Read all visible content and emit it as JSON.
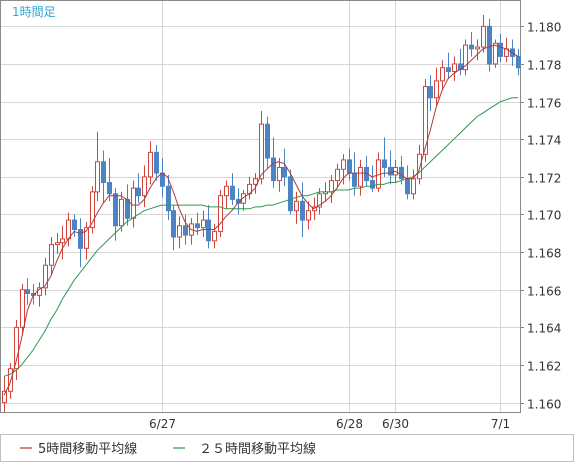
{
  "chart_data": {
    "type": "candlestick",
    "title": "1時間足",
    "ylim": [
      1.1595,
      1.1814
    ],
    "y_ticks": [
      "1.180",
      "1.178",
      "1.176",
      "1.174",
      "1.172",
      "1.170",
      "1.168",
      "1.166",
      "1.164",
      "1.162",
      "1.160"
    ],
    "x_tick_labels": [
      "6/27",
      "6/28",
      "6/30",
      "7/1"
    ],
    "grid": true,
    "legend_position": "bottom",
    "colors": {
      "up": "#d2453c",
      "down": "#4a84c4",
      "ma5": "#b03a3a",
      "ma25": "#2c9a52",
      "title": "#2fa7d6",
      "grid": "#d6d6d6",
      "frame": "#888888",
      "axis_text": "#333333"
    },
    "candles": [
      [
        1.16,
        1.1614,
        1.1595,
        1.1606
      ],
      [
        1.1606,
        1.1621,
        1.1602,
        1.1618
      ],
      [
        1.1618,
        1.1644,
        1.1612,
        1.164
      ],
      [
        1.164,
        1.1663,
        1.1636,
        1.166
      ],
      [
        1.166,
        1.1666,
        1.1652,
        1.1658
      ],
      [
        1.1658,
        1.1663,
        1.1652,
        1.1657
      ],
      [
        1.1657,
        1.1664,
        1.1651,
        1.1661
      ],
      [
        1.1661,
        1.1677,
        1.1657,
        1.1673
      ],
      [
        1.1673,
        1.1688,
        1.1668,
        1.1684
      ],
      [
        1.1684,
        1.169,
        1.1679,
        1.1685
      ],
      [
        1.1685,
        1.1694,
        1.1676,
        1.1687
      ],
      [
        1.1687,
        1.1701,
        1.1683,
        1.1697
      ],
      [
        1.1697,
        1.17,
        1.1688,
        1.1692
      ],
      [
        1.1692,
        1.1698,
        1.1672,
        1.1682
      ],
      [
        1.1682,
        1.1696,
        1.1676,
        1.1693
      ],
      [
        1.1693,
        1.1715,
        1.169,
        1.1712
      ],
      [
        1.1712,
        1.1744,
        1.1707,
        1.1728
      ],
      [
        1.1728,
        1.1734,
        1.1706,
        1.1717
      ],
      [
        1.1717,
        1.173,
        1.1707,
        1.1711
      ],
      [
        1.1711,
        1.1714,
        1.1686,
        1.1694
      ],
      [
        1.1694,
        1.1712,
        1.1691,
        1.1708
      ],
      [
        1.1708,
        1.1716,
        1.1694,
        1.1698
      ],
      [
        1.1698,
        1.1718,
        1.1693,
        1.1714
      ],
      [
        1.1714,
        1.1722,
        1.1706,
        1.171
      ],
      [
        1.171,
        1.1726,
        1.1704,
        1.172
      ],
      [
        1.172,
        1.1739,
        1.1716,
        1.1733
      ],
      [
        1.1733,
        1.1737,
        1.1718,
        1.1722
      ],
      [
        1.1722,
        1.173,
        1.1709,
        1.1715
      ],
      [
        1.1715,
        1.1721,
        1.1697,
        1.1702
      ],
      [
        1.1702,
        1.1705,
        1.1681,
        1.1688
      ],
      [
        1.1688,
        1.1699,
        1.1682,
        1.1694
      ],
      [
        1.1694,
        1.17,
        1.1684,
        1.1689
      ],
      [
        1.1689,
        1.1698,
        1.1684,
        1.1695
      ],
      [
        1.1695,
        1.1701,
        1.1689,
        1.1693
      ],
      [
        1.1693,
        1.1702,
        1.1688,
        1.1697
      ],
      [
        1.1697,
        1.1705,
        1.1682,
        1.1686
      ],
      [
        1.1686,
        1.1695,
        1.1682,
        1.1691
      ],
      [
        1.1691,
        1.1713,
        1.1688,
        1.171
      ],
      [
        1.171,
        1.1718,
        1.1703,
        1.1715
      ],
      [
        1.1715,
        1.1722,
        1.1705,
        1.1708
      ],
      [
        1.1708,
        1.1714,
        1.17,
        1.1706
      ],
      [
        1.1706,
        1.1713,
        1.1702,
        1.1711
      ],
      [
        1.1711,
        1.172,
        1.1708,
        1.1716
      ],
      [
        1.1716,
        1.1722,
        1.1711,
        1.1719
      ],
      [
        1.1719,
        1.1755,
        1.1716,
        1.1748
      ],
      [
        1.1748,
        1.1752,
        1.1724,
        1.173
      ],
      [
        1.173,
        1.1741,
        1.1714,
        1.1718
      ],
      [
        1.1718,
        1.173,
        1.1712,
        1.1725
      ],
      [
        1.1725,
        1.1735,
        1.1715,
        1.172
      ],
      [
        1.172,
        1.1724,
        1.17,
        1.1702
      ],
      [
        1.1702,
        1.1712,
        1.1695,
        1.1707
      ],
      [
        1.1707,
        1.1717,
        1.1688,
        1.1697
      ],
      [
        1.1697,
        1.1707,
        1.1692,
        1.1702
      ],
      [
        1.1702,
        1.1709,
        1.1697,
        1.1704
      ],
      [
        1.1704,
        1.1714,
        1.17,
        1.1711
      ],
      [
        1.1711,
        1.1717,
        1.1707,
        1.1712
      ],
      [
        1.1712,
        1.1721,
        1.1706,
        1.1718
      ],
      [
        1.1718,
        1.1727,
        1.1714,
        1.1724
      ],
      [
        1.1724,
        1.1732,
        1.1716,
        1.1729
      ],
      [
        1.1729,
        1.1735,
        1.1718,
        1.1722
      ],
      [
        1.1722,
        1.1733,
        1.171,
        1.1715
      ],
      [
        1.1715,
        1.1729,
        1.171,
        1.1725
      ],
      [
        1.1725,
        1.1731,
        1.1715,
        1.1718
      ],
      [
        1.1718,
        1.1726,
        1.1712,
        1.1714
      ],
      [
        1.1714,
        1.1733,
        1.1712,
        1.1729
      ],
      [
        1.1729,
        1.1741,
        1.172,
        1.1725
      ],
      [
        1.1725,
        1.1734,
        1.1716,
        1.1721
      ],
      [
        1.1721,
        1.1729,
        1.1717,
        1.1725
      ],
      [
        1.1725,
        1.1731,
        1.1716,
        1.1719
      ],
      [
        1.1719,
        1.1726,
        1.1708,
        1.1711
      ],
      [
        1.1711,
        1.1724,
        1.1708,
        1.1719
      ],
      [
        1.1719,
        1.1737,
        1.1716,
        1.1732
      ],
      [
        1.1732,
        1.1772,
        1.1728,
        1.1768
      ],
      [
        1.1768,
        1.1774,
        1.1755,
        1.1762
      ],
      [
        1.1762,
        1.1778,
        1.1758,
        1.1771
      ],
      [
        1.1771,
        1.1782,
        1.1766,
        1.1778
      ],
      [
        1.1778,
        1.1786,
        1.1772,
        1.1776
      ],
      [
        1.1776,
        1.1784,
        1.1771,
        1.178
      ],
      [
        1.178,
        1.1788,
        1.1774,
        1.1777
      ],
      [
        1.1777,
        1.1793,
        1.1774,
        1.179
      ],
      [
        1.179,
        1.1797,
        1.1784,
        1.1788
      ],
      [
        1.1788,
        1.1793,
        1.1782,
        1.1789
      ],
      [
        1.1789,
        1.1806,
        1.1786,
        1.18
      ],
      [
        1.18,
        1.1804,
        1.1776,
        1.178
      ],
      [
        1.178,
        1.1793,
        1.1778,
        1.1791
      ],
      [
        1.1791,
        1.1796,
        1.1781,
        1.1784
      ],
      [
        1.1784,
        1.1794,
        1.1781,
        1.1788
      ],
      [
        1.1788,
        1.1793,
        1.1779,
        1.1784
      ],
      [
        1.1784,
        1.1788,
        1.1774,
        1.1778
      ]
    ],
    "ma5_values": [
      1.1604,
      1.161,
      1.1621,
      1.1634,
      1.1649,
      1.1657,
      1.166,
      1.1662,
      1.1667,
      1.1675,
      1.1682,
      1.1687,
      1.1691,
      1.169,
      1.1691,
      1.1695,
      1.1701,
      1.1706,
      1.171,
      1.171,
      1.171,
      1.1708,
      1.1705,
      1.1705,
      1.1708,
      1.1714,
      1.1719,
      1.1722,
      1.172,
      1.1712,
      1.1703,
      1.1696,
      1.1692,
      1.1691,
      1.1692,
      1.1692,
      1.1692,
      1.1695,
      1.1699,
      1.1702,
      1.1706,
      1.1709,
      1.1711,
      1.1714,
      1.1721,
      1.1724,
      1.1727,
      1.1728,
      1.1727,
      1.1722,
      1.1716,
      1.171,
      1.1706,
      1.1703,
      1.1705,
      1.1707,
      1.171,
      1.1714,
      1.1719,
      1.1722,
      1.1722,
      1.1722,
      1.1722,
      1.172,
      1.1721,
      1.1722,
      1.1722,
      1.1723,
      1.1721,
      1.1719,
      1.1719,
      1.1723,
      1.1734,
      1.1745,
      1.1757,
      1.1766,
      1.1772,
      1.1775,
      1.1777,
      1.1779,
      1.1782,
      1.1785,
      1.1788,
      1.1789,
      1.179,
      1.1789,
      1.1788,
      1.1786,
      1.1784
    ],
    "ma25_values": [
      1.1614,
      1.1615,
      1.1617,
      1.162,
      1.1624,
      1.1628,
      1.1633,
      1.1638,
      1.1644,
      1.1649,
      1.1655,
      1.166,
      1.1665,
      1.1669,
      1.1673,
      1.1677,
      1.1681,
      1.1684,
      1.1687,
      1.169,
      1.1693,
      1.1696,
      1.1698,
      1.17,
      1.1702,
      1.1703,
      1.1704,
      1.1705,
      1.1705,
      1.1705,
      1.1705,
      1.1705,
      1.1705,
      1.1705,
      1.1705,
      1.1704,
      1.1704,
      1.1704,
      1.1703,
      1.1703,
      1.1703,
      1.1703,
      1.1703,
      1.1704,
      1.1704,
      1.1705,
      1.1705,
      1.1706,
      1.1707,
      1.1708,
      1.1709,
      1.171,
      1.171,
      1.1711,
      1.1712,
      1.1712,
      1.1712,
      1.1713,
      1.1713,
      1.1713,
      1.1714,
      1.1714,
      1.1715,
      1.1715,
      1.1716,
      1.1716,
      1.1717,
      1.1717,
      1.1718,
      1.1719,
      1.172,
      1.1722,
      1.1725,
      1.1728,
      1.1731,
      1.1734,
      1.1737,
      1.174,
      1.1743,
      1.1746,
      1.1749,
      1.1752,
      1.1754,
      1.1756,
      1.1758,
      1.176,
      1.1761,
      1.1762,
      1.1762
    ],
    "x_tick_candle_index": [
      27,
      59,
      67,
      85
    ],
    "legend": [
      {
        "name": "5時間移動平均線",
        "color_key": "ma5"
      },
      {
        "name": "２５時間移動平均線",
        "color_key": "ma25"
      }
    ]
  }
}
